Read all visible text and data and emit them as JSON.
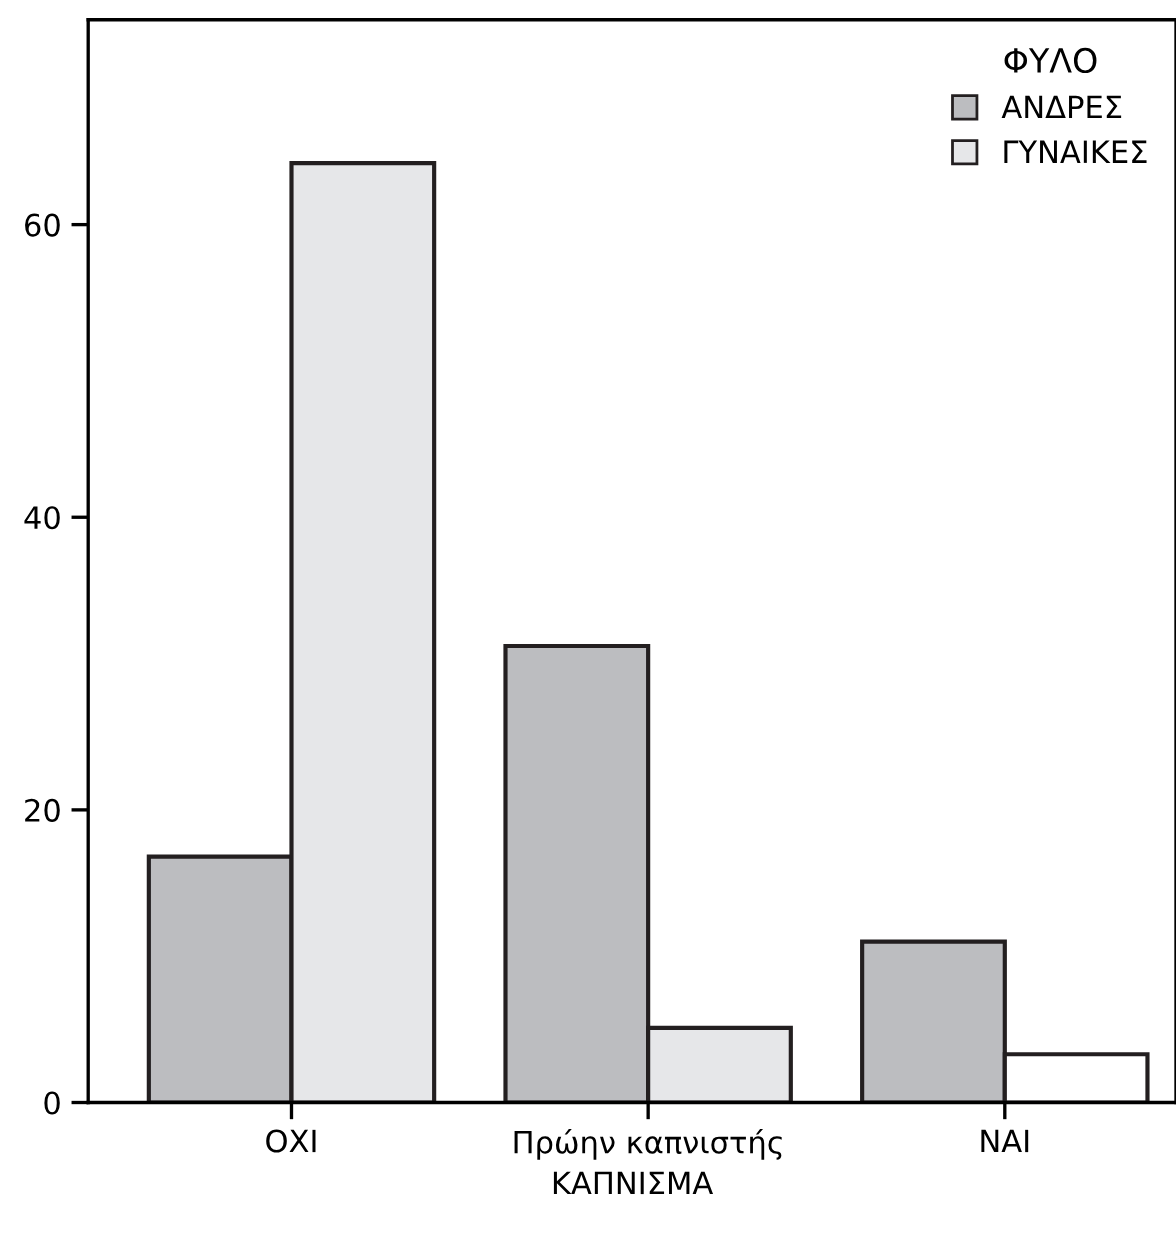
{
  "chart_data": {
    "type": "bar",
    "xlabel": "ΚΑΠΝΙΣΜΑ",
    "legend_title": "ΦΥΛΟ",
    "categories": [
      "ΟΧΙ",
      "Πρώην καπνιστής",
      "ΝΑΙ"
    ],
    "series": [
      {
        "name": "ΑΝΔΡΕΣ",
        "color": "#bcbdc0",
        "values": [
          16.8,
          31.2,
          11.0
        ]
      },
      {
        "name": "ΓΥΝΑΙΚΕΣ",
        "color": "#e6e7e9",
        "colors": [
          "#e6e7e9",
          "#e6e7e9",
          "#ffffff"
        ],
        "values": [
          64.2,
          5.1,
          3.3
        ]
      }
    ],
    "ylim": [
      0,
      74
    ],
    "yticks": [
      0,
      20,
      40,
      60
    ],
    "grid": false,
    "legend": "top right"
  }
}
